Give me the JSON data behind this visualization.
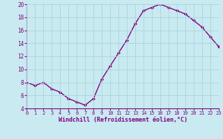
{
  "x": [
    0,
    1,
    2,
    3,
    4,
    5,
    6,
    7,
    8,
    9,
    10,
    11,
    12,
    13,
    14,
    15,
    16,
    17,
    18,
    19,
    20,
    21,
    22,
    23
  ],
  "y": [
    8.0,
    7.5,
    8.0,
    7.0,
    6.5,
    5.5,
    5.0,
    4.5,
    5.5,
    8.5,
    10.5,
    12.5,
    14.5,
    17.0,
    19.0,
    19.5,
    20.0,
    19.5,
    19.0,
    18.5,
    17.5,
    16.5,
    15.0,
    13.5
  ],
  "line_color": "#800080",
  "marker": "D",
  "marker_size": 2.0,
  "line_width": 1.0,
  "bg_color": "#c8eaf0",
  "grid_color": "#aad4dc",
  "xlabel": "Windchill (Refroidissement éolien,°C)",
  "xlabel_color": "#800080",
  "tick_color": "#800080",
  "xlim": [
    0,
    23
  ],
  "ylim": [
    4,
    20
  ],
  "yticks": [
    4,
    6,
    8,
    10,
    12,
    14,
    16,
    18,
    20
  ],
  "xticks": [
    0,
    1,
    2,
    3,
    4,
    5,
    6,
    7,
    8,
    9,
    10,
    11,
    12,
    13,
    14,
    15,
    16,
    17,
    18,
    19,
    20,
    21,
    22,
    23
  ],
  "tick_fontsize": 5.0,
  "xlabel_fontsize": 6.0,
  "ytick_fontsize": 5.5
}
